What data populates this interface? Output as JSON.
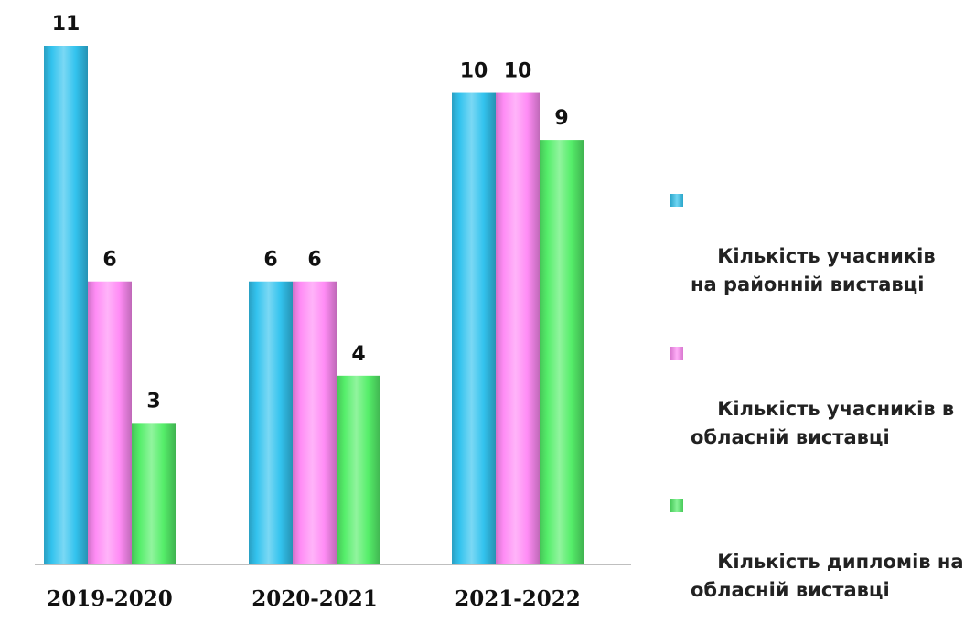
{
  "chart_data": {
    "type": "bar",
    "categories": [
      "2019-2020",
      "2020-2021",
      "2021-2022"
    ],
    "series": [
      {
        "name": "Кількість учасників  на районній виставці",
        "color": "#33C3EE",
        "values": [
          11,
          6,
          10
        ]
      },
      {
        "name": "Кількість учасників в обласній виставці",
        "color": "#FF8CF5",
        "values": [
          6,
          6,
          10
        ]
      },
      {
        "name": "Кількість дипломів на обласній виставці",
        "color": "#55EE6A",
        "values": [
          3,
          4,
          9
        ]
      }
    ],
    "ylim": [
      0,
      11
    ],
    "grid": false,
    "legend_position": "right"
  }
}
